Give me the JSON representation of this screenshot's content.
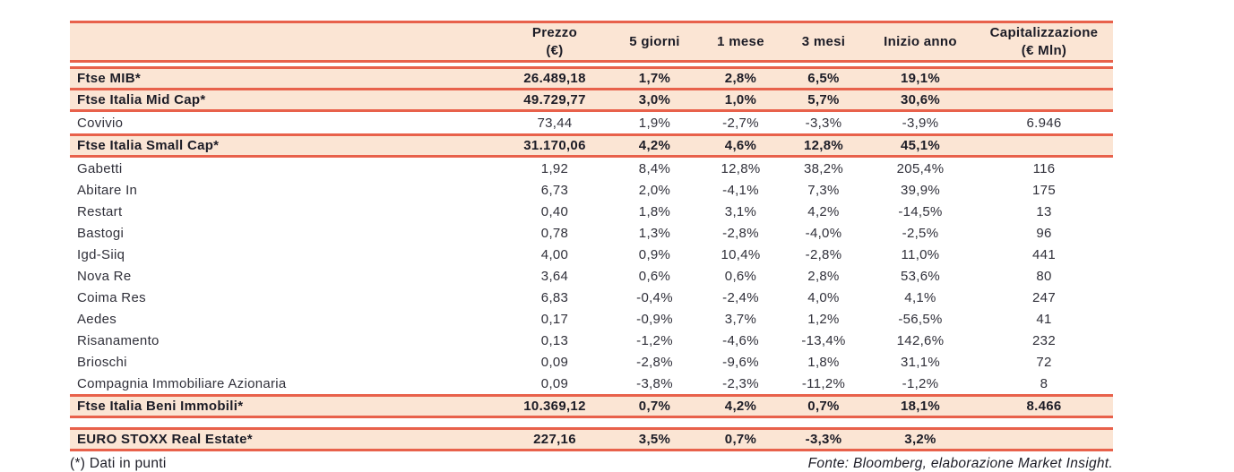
{
  "colors": {
    "accent_red": "#E8614B",
    "highlight_bg": "#FBE5D4",
    "text_dark": "#1C1C26"
  },
  "table": {
    "columns": [
      {
        "label": "",
        "sub": ""
      },
      {
        "label": "Prezzo",
        "sub": "(€)"
      },
      {
        "label": "5 giorni",
        "sub": ""
      },
      {
        "label": "1 mese",
        "sub": ""
      },
      {
        "label": "3 mesi",
        "sub": ""
      },
      {
        "label": "Inizio anno",
        "sub": ""
      },
      {
        "label": "Capitalizzazione",
        "sub": "(€ Mln)"
      }
    ],
    "rows": [
      {
        "name": "Ftse MIB*",
        "price": "26.489,18",
        "d5": "1,7%",
        "m1": "2,8%",
        "m3": "6,5%",
        "ytd": "19,1%",
        "cap": "",
        "highlight": true,
        "gap_before": "sm"
      },
      {
        "name": "Ftse Italia Mid Cap*",
        "price": "49.729,77",
        "d5": "3,0%",
        "m1": "1,0%",
        "m3": "5,7%",
        "ytd": "30,6%",
        "cap": "",
        "highlight": true
      },
      {
        "name": "Covivio",
        "price": "73,44",
        "d5": "1,9%",
        "m1": "-2,7%",
        "m3": "-3,3%",
        "ytd": "-3,9%",
        "cap": "6.946",
        "highlight": false
      },
      {
        "name": "Ftse Italia Small Cap*",
        "price": "31.170,06",
        "d5": "4,2%",
        "m1": "4,6%",
        "m3": "12,8%",
        "ytd": "45,1%",
        "cap": "",
        "highlight": true
      },
      {
        "name": "Gabetti",
        "price": "1,92",
        "d5": "8,4%",
        "m1": "12,8%",
        "m3": "38,2%",
        "ytd": "205,4%",
        "cap": "116",
        "highlight": false
      },
      {
        "name": "Abitare In",
        "price": "6,73",
        "d5": "2,0%",
        "m1": "-4,1%",
        "m3": "7,3%",
        "ytd": "39,9%",
        "cap": "175",
        "highlight": false
      },
      {
        "name": "Restart",
        "price": "0,40",
        "d5": "1,8%",
        "m1": "3,1%",
        "m3": "4,2%",
        "ytd": "-14,5%",
        "cap": "13",
        "highlight": false
      },
      {
        "name": "Bastogi",
        "price": "0,78",
        "d5": "1,3%",
        "m1": "-2,8%",
        "m3": "-4,0%",
        "ytd": "-2,5%",
        "cap": "96",
        "highlight": false
      },
      {
        "name": "Igd-Siiq",
        "price": "4,00",
        "d5": "0,9%",
        "m1": "10,4%",
        "m3": "-2,8%",
        "ytd": "11,0%",
        "cap": "441",
        "highlight": false
      },
      {
        "name": "Nova Re",
        "price": "3,64",
        "d5": "0,6%",
        "m1": "0,6%",
        "m3": "2,8%",
        "ytd": "53,6%",
        "cap": "80",
        "highlight": false
      },
      {
        "name": "Coima Res",
        "price": "6,83",
        "d5": "-0,4%",
        "m1": "-2,4%",
        "m3": "4,0%",
        "ytd": "4,1%",
        "cap": "247",
        "highlight": false
      },
      {
        "name": "Aedes",
        "price": "0,17",
        "d5": "-0,9%",
        "m1": "3,7%",
        "m3": "1,2%",
        "ytd": "-56,5%",
        "cap": "41",
        "highlight": false
      },
      {
        "name": "Risanamento",
        "price": "0,13",
        "d5": "-1,2%",
        "m1": "-4,6%",
        "m3": "-13,4%",
        "ytd": "142,6%",
        "cap": "232",
        "highlight": false
      },
      {
        "name": "Brioschi",
        "price": "0,09",
        "d5": "-2,8%",
        "m1": "-9,6%",
        "m3": "1,8%",
        "ytd": "31,1%",
        "cap": "72",
        "highlight": false
      },
      {
        "name": "Compagnia Immobiliare Azionaria",
        "price": "0,09",
        "d5": "-3,8%",
        "m1": "-2,3%",
        "m3": "-11,2%",
        "ytd": "-1,2%",
        "cap": "8",
        "highlight": false
      },
      {
        "name": "Ftse Italia Beni Immobili*",
        "price": "10.369,12",
        "d5": "0,7%",
        "m1": "4,2%",
        "m3": "0,7%",
        "ytd": "18,1%",
        "cap": "8.466",
        "highlight": true
      },
      {
        "name": "EURO STOXX Real Estate*",
        "price": "227,16",
        "d5": "3,5%",
        "m1": "0,7%",
        "m3": "-3,3%",
        "ytd": "3,2%",
        "cap": "",
        "highlight": true,
        "gap_before": "lg"
      }
    ]
  },
  "footer": {
    "note": "(*) Dati in punti",
    "source": "Fonte: Bloomberg, elaborazione Market Insight."
  }
}
